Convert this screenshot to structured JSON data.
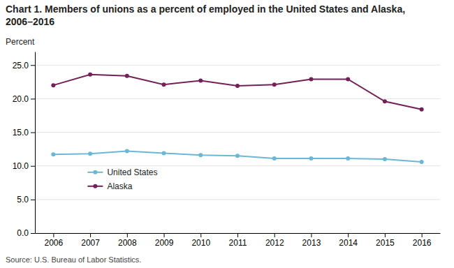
{
  "chart_data": {
    "type": "line",
    "title": "Chart 1. Members of unions as a percent of employed in the United States and Alaska, 2006–2016",
    "ylabel": "Percent",
    "source": "Source: U.S. Bureau of Labor Statistics.",
    "x": [
      2006,
      2007,
      2008,
      2009,
      2010,
      2011,
      2012,
      2013,
      2014,
      2015,
      2016
    ],
    "series": [
      {
        "name": "United States",
        "color": "#6bb8d4",
        "marker": "circle",
        "values": [
          11.7,
          11.8,
          12.2,
          11.9,
          11.6,
          11.5,
          11.1,
          11.1,
          11.1,
          11.0,
          10.6
        ]
      },
      {
        "name": "Alaska",
        "color": "#722057",
        "marker": "circle",
        "values": [
          22.0,
          23.6,
          23.4,
          22.1,
          22.7,
          21.9,
          22.1,
          22.9,
          22.9,
          19.6,
          18.4
        ]
      }
    ],
    "xlim": [
      2005.5,
      2016.5
    ],
    "xticks": [
      2006,
      2007,
      2008,
      2009,
      2010,
      2011,
      2012,
      2013,
      2014,
      2015,
      2016
    ],
    "ylim": [
      0,
      27
    ],
    "yticks": [
      {
        "value": 0,
        "label": "0.0"
      },
      {
        "value": 5,
        "label": "5.0"
      },
      {
        "value": 10,
        "label": "10.0"
      },
      {
        "value": 15,
        "label": "15.0"
      },
      {
        "value": 20,
        "label": "20.0"
      },
      {
        "value": 25,
        "label": "25.0"
      }
    ],
    "grid": true,
    "legend": "lower left"
  }
}
